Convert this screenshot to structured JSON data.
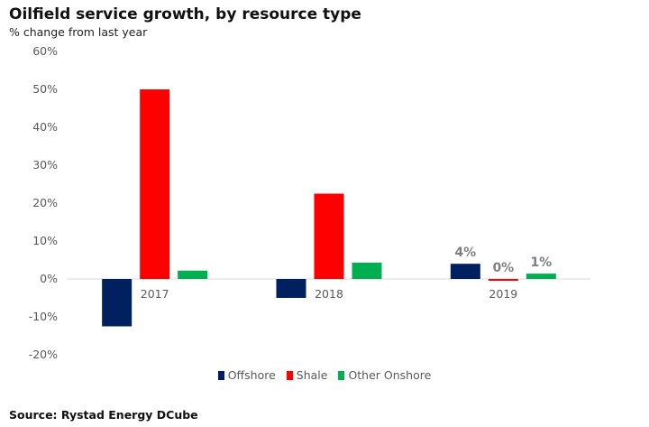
{
  "header": {
    "title": "Oilfield service growth, by resource type",
    "subtitle": "% change from last year"
  },
  "footer": {
    "source": "Source: Rystad Energy DCube"
  },
  "chart_data": {
    "type": "bar",
    "title": "Oilfield service growth, by resource type",
    "subtitle": "% change from last year",
    "xlabel": "",
    "ylabel": "",
    "categories": [
      "2017",
      "2018",
      "2019"
    ],
    "yticks": [
      "60%",
      "50%",
      "40%",
      "30%",
      "20%",
      "10%",
      "0%",
      "-10%",
      "-20%"
    ],
    "ylim": [
      -20,
      60
    ],
    "grid": false,
    "legend_position": "bottom",
    "series": [
      {
        "name": "Offshore",
        "color": "#002060",
        "values": [
          -12.5,
          -5,
          4
        ],
        "labels": [
          "",
          "",
          "4%"
        ]
      },
      {
        "name": "Shale",
        "color": "#ff0000",
        "values": [
          50,
          22.5,
          -0.4
        ],
        "labels": [
          "",
          "",
          "0%"
        ]
      },
      {
        "name": "Other Onshore",
        "color": "#00b050",
        "values": [
          2.2,
          4.3,
          1.4
        ],
        "labels": [
          "",
          "",
          "1%"
        ]
      }
    ]
  }
}
